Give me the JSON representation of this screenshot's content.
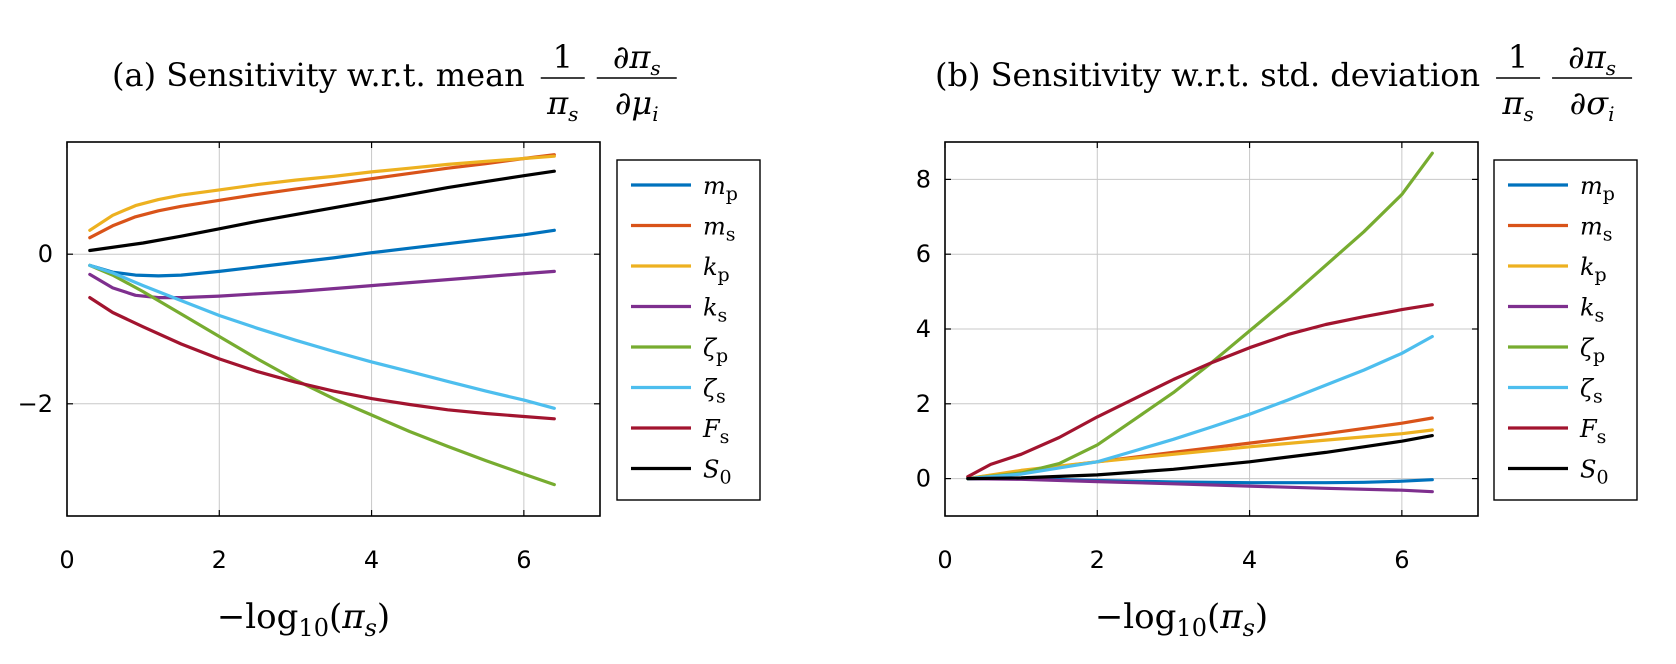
{
  "chart_data": [
    {
      "type": "line",
      "title_prefix": "(a) Sensitivity w.r.t. mean",
      "title_fraction_1": {
        "numerator": "1",
        "denominator_base": "π",
        "denominator_sub": "s"
      },
      "title_fraction_2": {
        "numerator_base": "∂π",
        "numerator_sub": "s",
        "denominator_base": "∂μ",
        "denominator_sub": "i"
      },
      "xlabel": {
        "prefix": "−log",
        "sub": "10",
        "arg_open": "(",
        "arg_base": "π",
        "arg_sub": "s",
        "arg_close": ")"
      },
      "xlim": [
        0,
        7
      ],
      "ylim": [
        -3.5,
        1.5
      ],
      "xticks": [
        0,
        2,
        4,
        6
      ],
      "yticks": [
        -2,
        0
      ],
      "xtick_labels": [
        "0",
        "2",
        "4",
        "6"
      ],
      "ytick_labels": [
        "−2",
        "0"
      ],
      "grid": true,
      "legend_position": "right-outside",
      "series": [
        {
          "name": "m",
          "sub": "p",
          "color": "#0072BD",
          "x": [
            0.3,
            0.6,
            0.9,
            1.2,
            1.5,
            2,
            2.5,
            3,
            3.5,
            4,
            4.5,
            5,
            5.5,
            6,
            6.4
          ],
          "y": [
            -0.15,
            -0.24,
            -0.28,
            -0.29,
            -0.28,
            -0.23,
            -0.17,
            -0.11,
            -0.05,
            0.02,
            0.08,
            0.14,
            0.2,
            0.26,
            0.32
          ]
        },
        {
          "name": "m",
          "sub": "s",
          "color": "#D95319",
          "x": [
            0.3,
            0.6,
            0.9,
            1.2,
            1.5,
            2,
            2.5,
            3,
            3.5,
            4,
            4.5,
            5,
            5.5,
            6,
            6.4
          ],
          "y": [
            0.22,
            0.38,
            0.5,
            0.58,
            0.64,
            0.72,
            0.8,
            0.87,
            0.94,
            1.01,
            1.08,
            1.15,
            1.21,
            1.28,
            1.33
          ]
        },
        {
          "name": "k",
          "sub": "p",
          "color": "#EDB120",
          "x": [
            0.3,
            0.6,
            0.9,
            1.2,
            1.5,
            2,
            2.5,
            3,
            3.5,
            4,
            4.5,
            5,
            5.5,
            6,
            6.4
          ],
          "y": [
            0.32,
            0.52,
            0.65,
            0.73,
            0.79,
            0.86,
            0.93,
            0.99,
            1.04,
            1.1,
            1.15,
            1.2,
            1.24,
            1.28,
            1.31
          ]
        },
        {
          "name": "k",
          "sub": "s",
          "color": "#7E2F8E",
          "x": [
            0.3,
            0.6,
            0.9,
            1.2,
            1.5,
            2,
            2.5,
            3,
            3.5,
            4,
            4.5,
            5,
            5.5,
            6,
            6.4
          ],
          "y": [
            -0.27,
            -0.45,
            -0.55,
            -0.58,
            -0.58,
            -0.56,
            -0.53,
            -0.5,
            -0.46,
            -0.42,
            -0.38,
            -0.34,
            -0.3,
            -0.26,
            -0.23
          ]
        },
        {
          "name": "ζ",
          "sub": "p",
          "color": "#77AC30",
          "x": [
            0.3,
            0.6,
            1,
            1.5,
            2,
            2.5,
            3,
            3.5,
            4,
            4.5,
            5,
            5.5,
            6,
            6.4
          ],
          "y": [
            -0.15,
            -0.28,
            -0.5,
            -0.8,
            -1.1,
            -1.4,
            -1.68,
            -1.93,
            -2.15,
            -2.37,
            -2.57,
            -2.76,
            -2.94,
            -3.08
          ]
        },
        {
          "name": "ζ",
          "sub": "s",
          "color": "#4DBEEE",
          "x": [
            0.3,
            0.6,
            1,
            1.5,
            2,
            2.5,
            3,
            3.5,
            4,
            4.5,
            5,
            5.5,
            6,
            6.4
          ],
          "y": [
            -0.15,
            -0.25,
            -0.42,
            -0.62,
            -0.82,
            -0.99,
            -1.15,
            -1.3,
            -1.44,
            -1.57,
            -1.7,
            -1.83,
            -1.95,
            -2.06
          ]
        },
        {
          "name": "F",
          "sub": "s",
          "color": "#A2142F",
          "x": [
            0.3,
            0.6,
            1,
            1.5,
            2,
            2.5,
            3,
            3.5,
            4,
            4.5,
            5,
            5.5,
            6,
            6.4
          ],
          "y": [
            -0.58,
            -0.78,
            -0.97,
            -1.2,
            -1.4,
            -1.57,
            -1.71,
            -1.83,
            -1.93,
            -2.01,
            -2.08,
            -2.13,
            -2.17,
            -2.2
          ]
        },
        {
          "name": "S",
          "sub": "0",
          "color": "#000000",
          "x": [
            0.3,
            1,
            1.5,
            2,
            2.5,
            3,
            3.5,
            4,
            4.5,
            5,
            5.5,
            6,
            6.4
          ],
          "y": [
            0.05,
            0.15,
            0.24,
            0.34,
            0.44,
            0.53,
            0.62,
            0.71,
            0.8,
            0.89,
            0.97,
            1.05,
            1.11
          ]
        }
      ]
    },
    {
      "type": "line",
      "title_prefix": "(b) Sensitivity w.r.t. std. deviation",
      "title_fraction_1": {
        "numerator": "1",
        "denominator_base": "π",
        "denominator_sub": "s"
      },
      "title_fraction_2": {
        "numerator_base": "∂π",
        "numerator_sub": "s",
        "denominator_base": "∂σ",
        "denominator_sub": "i"
      },
      "xlabel": {
        "prefix": "−log",
        "sub": "10",
        "arg_open": "(",
        "arg_base": "π",
        "arg_sub": "s",
        "arg_close": ")"
      },
      "xlim": [
        0,
        7
      ],
      "ylim": [
        -1,
        9
      ],
      "xticks": [
        0,
        2,
        4,
        6
      ],
      "yticks": [
        0,
        2,
        4,
        6,
        8
      ],
      "xtick_labels": [
        "0",
        "2",
        "4",
        "6"
      ],
      "ytick_labels": [
        "0",
        "2",
        "4",
        "6",
        "8"
      ],
      "grid": true,
      "legend_position": "right-outside",
      "series": [
        {
          "name": "m",
          "sub": "p",
          "color": "#0072BD",
          "x": [
            0.3,
            1,
            2,
            3,
            4,
            5,
            5.5,
            6,
            6.4
          ],
          "y": [
            0,
            0,
            -0.05,
            -0.09,
            -0.11,
            -0.11,
            -0.1,
            -0.07,
            -0.03
          ]
        },
        {
          "name": "m",
          "sub": "s",
          "color": "#D95319",
          "x": [
            0.3,
            1,
            2,
            3,
            4,
            5,
            6,
            6.4
          ],
          "y": [
            0,
            0.2,
            0.45,
            0.7,
            0.95,
            1.2,
            1.48,
            1.62
          ]
        },
        {
          "name": "k",
          "sub": "p",
          "color": "#EDB120",
          "x": [
            0.3,
            1,
            2,
            3,
            4,
            5,
            6,
            6.4
          ],
          "y": [
            0,
            0.22,
            0.45,
            0.65,
            0.85,
            1.03,
            1.2,
            1.3
          ]
        },
        {
          "name": "k",
          "sub": "s",
          "color": "#7E2F8E",
          "x": [
            0.3,
            1,
            2,
            3,
            4,
            5,
            6,
            6.4
          ],
          "y": [
            0,
            -0.02,
            -0.08,
            -0.14,
            -0.2,
            -0.26,
            -0.31,
            -0.35
          ]
        },
        {
          "name": "ζ",
          "sub": "p",
          "color": "#77AC30",
          "x": [
            0.3,
            1,
            1.5,
            2,
            2.5,
            3,
            3.5,
            4,
            4.5,
            5,
            5.5,
            6,
            6.4
          ],
          "y": [
            0,
            0.15,
            0.4,
            0.9,
            1.6,
            2.3,
            3.1,
            3.95,
            4.8,
            5.7,
            6.6,
            7.6,
            8.7
          ]
        },
        {
          "name": "ζ",
          "sub": "s",
          "color": "#4DBEEE",
          "x": [
            0.3,
            1,
            2,
            2.5,
            3,
            3.5,
            4,
            4.5,
            5,
            5.5,
            6,
            6.4
          ],
          "y": [
            0,
            0.12,
            0.45,
            0.75,
            1.05,
            1.38,
            1.72,
            2.1,
            2.5,
            2.9,
            3.35,
            3.8
          ]
        },
        {
          "name": "F",
          "sub": "s",
          "color": "#A2142F",
          "x": [
            0.3,
            0.6,
            1,
            1.5,
            2,
            2.5,
            3,
            3.5,
            4,
            4.5,
            5,
            5.5,
            6,
            6.4
          ],
          "y": [
            0.05,
            0.38,
            0.65,
            1.1,
            1.65,
            2.15,
            2.65,
            3.1,
            3.5,
            3.85,
            4.12,
            4.33,
            4.52,
            4.65
          ]
        },
        {
          "name": "S",
          "sub": "0",
          "color": "#000000",
          "x": [
            0.3,
            1,
            2,
            3,
            4,
            5,
            5.5,
            6,
            6.4
          ],
          "y": [
            0,
            0.02,
            0.1,
            0.25,
            0.45,
            0.7,
            0.85,
            1.0,
            1.15
          ]
        }
      ]
    }
  ]
}
